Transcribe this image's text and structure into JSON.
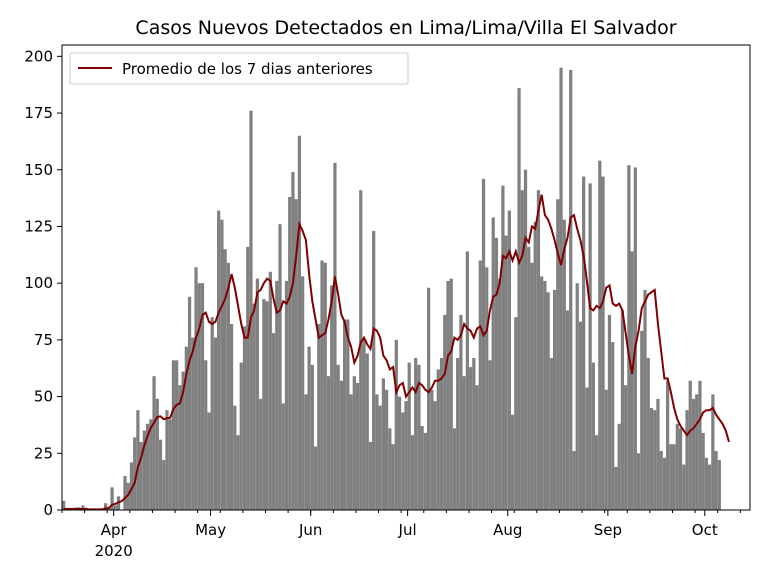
{
  "chart_data": {
    "type": "bar",
    "title": "Casos Nuevos Detectados en Lima/Lima/Villa El Salvador",
    "xlabel": "",
    "ylabel": "",
    "start_date": "2020-03-16",
    "xlim": [
      "2020-03-16",
      "2020-10-15"
    ],
    "ylim": [
      0,
      205
    ],
    "yticks": [
      0,
      25,
      50,
      75,
      100,
      125,
      150,
      175,
      200
    ],
    "x_month_labels": [
      {
        "date": "2020-04-01",
        "label": "Apr",
        "year": "2020"
      },
      {
        "date": "2020-05-01",
        "label": "May"
      },
      {
        "date": "2020-06-01",
        "label": "Jun"
      },
      {
        "date": "2020-07-01",
        "label": "Jul"
      },
      {
        "date": "2020-08-01",
        "label": "Aug"
      },
      {
        "date": "2020-09-01",
        "label": "Sep"
      },
      {
        "date": "2020-10-01",
        "label": "Oct"
      }
    ],
    "bar_color": "#808080",
    "line_color": "#800000",
    "legend": {
      "position": "top-left",
      "label": "Promedio de los 7 dias anteriores"
    },
    "grid": false,
    "series": [
      {
        "type": "bar",
        "values": [
          4,
          0,
          0,
          0,
          0,
          0,
          2,
          1,
          0,
          0,
          0,
          0,
          0,
          3,
          1,
          10,
          2,
          6,
          0,
          15,
          12,
          21,
          32,
          44,
          30,
          35,
          38,
          40,
          59,
          49,
          31,
          22,
          44,
          40,
          66,
          66,
          55,
          61,
          72,
          94,
          76,
          107,
          100,
          100,
          66,
          43,
          85,
          76,
          132,
          128,
          115,
          109,
          82,
          46,
          33,
          65,
          81,
          116,
          176,
          91,
          102,
          49,
          93,
          92,
          105,
          78,
          101,
          126,
          47,
          101,
          138,
          149,
          137,
          165,
          103,
          51,
          72,
          64,
          28,
          82,
          110,
          109,
          59,
          99,
          153,
          64,
          57,
          84,
          84,
          51,
          59,
          56,
          141,
          75,
          69,
          30,
          123,
          51,
          46,
          58,
          53,
          36,
          29,
          75,
          50,
          43,
          48,
          65,
          33,
          67,
          64,
          37,
          34,
          98,
          53,
          48,
          62,
          67,
          86,
          101,
          102,
          36,
          67,
          86,
          59,
          114,
          63,
          67,
          55,
          110,
          146,
          107,
          66,
          129,
          120,
          102,
          143,
          121,
          132,
          42,
          85,
          186,
          141,
          150,
          116,
          109,
          127,
          141,
          103,
          101,
          96,
          67,
          97,
          137,
          195,
          128,
          88,
          194,
          26,
          100,
          83,
          147,
          54,
          144,
          65,
          33,
          154,
          147,
          53,
          86,
          74,
          19,
          38,
          88,
          55,
          152,
          114,
          151,
          25,
          79,
          97,
          67,
          45,
          44,
          49,
          26,
          23,
          57,
          29,
          29,
          38,
          36,
          20,
          44,
          57,
          49,
          51,
          57,
          34,
          23,
          20,
          51,
          26,
          22
        ]
      },
      {
        "type": "line",
        "name": "Promedio de los 7 dias anteriores",
        "values": [
          0.5,
          0.5,
          0.5,
          0.5,
          0.6,
          0.6,
          0.4,
          0.4,
          0.3,
          0.3,
          0.3,
          0.3,
          0.3,
          0.7,
          0.9,
          2.3,
          2.7,
          3.4,
          3.9,
          5.3,
          6.6,
          9.3,
          12.0,
          19.0,
          23.0,
          28.6,
          32.7,
          36.3,
          38.5,
          41.0,
          41.3,
          40.0,
          40.5,
          40.7,
          44.6,
          46.3,
          47.0,
          52.0,
          60.0,
          66.0,
          70.0,
          76.0,
          80.0,
          86.0,
          87.0,
          83.0,
          82.0,
          83.0,
          87.0,
          90.0,
          93.0,
          98.0,
          104.0,
          98.0,
          90.0,
          82.0,
          76.0,
          76.0,
          85.0,
          88.0,
          96.0,
          97.0,
          100.0,
          102.0,
          101.0,
          93.0,
          87.0,
          88.0,
          92.0,
          91.0,
          94.0,
          100.0,
          112.0,
          126.0,
          123.0,
          119.0,
          104.0,
          92.0,
          84.0,
          76.0,
          77.0,
          78.0,
          84.0,
          92.0,
          103.0,
          95.0,
          86.0,
          83.0,
          76.0,
          72.0,
          65.0,
          68.0,
          74.0,
          76.0,
          73.0,
          71.0,
          80.0,
          79.0,
          76.0,
          68.0,
          66.0,
          62.0,
          63.0,
          52.0,
          55.0,
          56.0,
          50.0,
          52.0,
          54.0,
          52.0,
          56.0,
          55.0,
          53.0,
          52.0,
          54.0,
          57.0,
          57.0,
          58.0,
          60.0,
          68.0,
          70.0,
          76.0,
          75.0,
          77.0,
          82.0,
          80.0,
          79.0,
          76.0,
          80.0,
          81.0,
          77.0,
          79.0,
          88.0,
          94.0,
          95.0,
          100.0,
          112.0,
          111.0,
          114.0,
          110.0,
          114.0,
          109.0,
          112.0,
          120.0,
          118.0,
          125.0,
          124.0,
          132.0,
          139.0,
          130.0,
          128.0,
          124.0,
          119.0,
          113.0,
          108.0,
          115.0,
          120.0,
          129.0,
          130.0,
          124.0,
          119.0,
          112.0,
          101.0,
          89.0,
          88.0,
          90.0,
          89.0,
          92.0,
          98.0,
          99.0,
          91.0,
          90.0,
          91.0,
          88.0,
          78.0,
          68.0,
          60.0,
          72.0,
          79.0,
          89.0,
          92.0,
          95.0,
          96.0,
          97.0,
          82.0,
          70.0,
          58.0,
          58.0,
          52.0,
          45.0,
          40.0,
          37.0,
          35.0,
          33.0,
          35.0,
          36.0,
          38.0,
          40.0,
          43.0,
          44.0,
          44.0,
          45.0,
          42.0,
          40.0,
          38.0,
          35.0,
          30.0
        ]
      }
    ]
  }
}
